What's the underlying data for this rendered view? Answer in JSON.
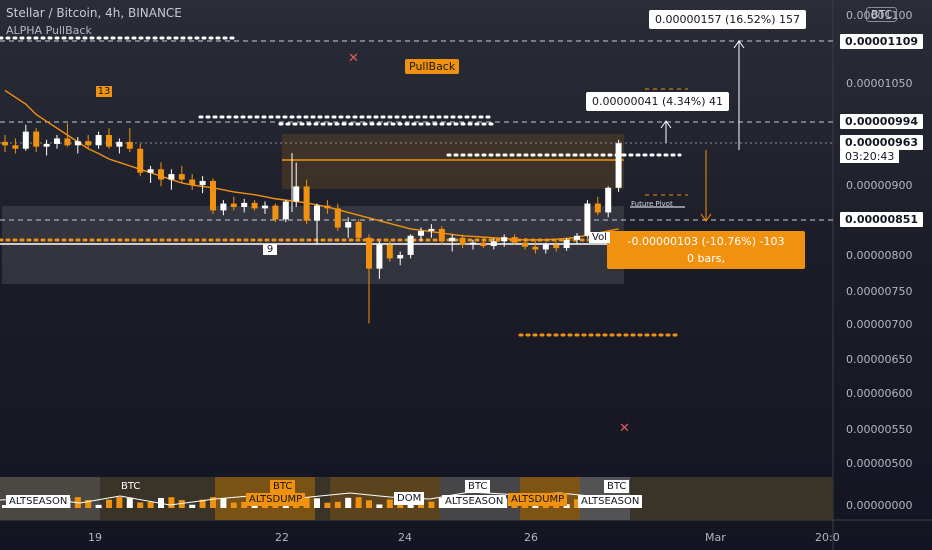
{
  "header": {
    "title": "Stellar / Bitcoin, 4h, BINANCE",
    "indicator": "ALPHA PullBack",
    "currency": "BTC"
  },
  "price_axis": {
    "ticks": [
      "0.00001100",
      "0.00001050",
      "0.00000900",
      "0.00000800",
      "0.00000750",
      "0.00000700",
      "0.00000650",
      "0.00000600",
      "0.00000550",
      "0.00000500",
      "0.00000000"
    ],
    "labels": {
      "top": "0.00001109",
      "upper": "0.00000994",
      "current": "0.00000963",
      "countdown": "03:20:43",
      "lower": "0.00000851"
    }
  },
  "date_axis": {
    "ticks": [
      "19",
      "22",
      "24",
      "26",
      "Mar",
      "20:0"
    ]
  },
  "annotations": {
    "measure_up_large": "0.00000157 (16.52%) 157",
    "measure_up_small": "0.00000041 (4.34%) 41",
    "measure_down_line1": "-0.00000103 (-10.76%) -103",
    "measure_down_line2": "0 bars,",
    "pullback": "PullBack",
    "count_top": "13",
    "count_bottom": "9",
    "future_pivot": "Future Pivot",
    "vol": "Vol"
  },
  "oscillator": {
    "labels": [
      {
        "text": "ALTSEASON",
        "style": "white"
      },
      {
        "text": "BTC",
        "style": "ghost"
      },
      {
        "text": "BTC",
        "style": "orange"
      },
      {
        "text": "ALTSDUMP",
        "style": "orange"
      },
      {
        "text": "DOM",
        "style": "white"
      },
      {
        "text": "ALTSEASON",
        "style": "white"
      },
      {
        "text": "BTC",
        "style": "white"
      },
      {
        "text": "ALTSDUMP",
        "style": "orange"
      },
      {
        "text": "BTC",
        "style": "white"
      },
      {
        "text": "ALTSEASON",
        "style": "white"
      }
    ]
  },
  "colors": {
    "bull": "#ffffff",
    "bear": "#f0920f",
    "accent": "#f0920f",
    "background": "#1c1d28"
  },
  "chart_data": {
    "type": "candlestick",
    "title": "Stellar / Bitcoin, 4h, BINANCE",
    "xlabel": "",
    "ylabel": "",
    "candles": [
      [
        9.65e-06,
        9.75e-06,
        9.5e-06,
        9.6e-06
      ],
      [
        9.6e-06,
        9.7e-06,
        9.48e-06,
        9.55e-06
      ],
      [
        9.55e-06,
        9.9e-06,
        9.52e-06,
        9.8e-06
      ],
      [
        9.8e-06,
        9.85e-06,
        9.5e-06,
        9.58e-06
      ],
      [
        9.58e-06,
        9.68e-06,
        9.45e-06,
        9.62e-06
      ],
      [
        9.62e-06,
        9.75e-06,
        9.55e-06,
        9.7e-06
      ],
      [
        9.7e-06,
        9.92e-06,
        9.58e-06,
        9.6e-06
      ],
      [
        9.6e-06,
        9.72e-06,
        9.48e-06,
        9.66e-06
      ],
      [
        9.66e-06,
        9.75e-06,
        9.55e-06,
        9.6e-06
      ],
      [
        9.6e-06,
        9.8e-06,
        9.55e-06,
        9.75e-06
      ],
      [
        9.75e-06,
        9.85e-06,
        9.55e-06,
        9.58e-06
      ],
      [
        9.58e-06,
        9.7e-06,
        9.48e-06,
        9.65e-06
      ],
      [
        9.65e-06,
        9.85e-06,
        9.5e-06,
        9.55e-06
      ],
      [
        9.55e-06,
        9.62e-06,
        9.15e-06,
        9.2e-06
      ],
      [
        9.2e-06,
        9.3e-06,
        9.05e-06,
        9.25e-06
      ],
      [
        9.25e-06,
        9.35e-06,
        9e-06,
        9.1e-06
      ],
      [
        9.1e-06,
        9.25e-06,
        8.95e-06,
        9.18e-06
      ],
      [
        9.18e-06,
        9.3e-06,
        9.05e-06,
        9.1e-06
      ],
      [
        9.1e-06,
        9.18e-06,
        8.95e-06,
        9.02e-06
      ],
      [
        9.02e-06,
        9.15e-06,
        8.9e-06,
        9.08e-06
      ],
      [
        9.08e-06,
        9.12e-06,
        8.6e-06,
        8.65e-06
      ],
      [
        8.65e-06,
        8.8e-06,
        8.58e-06,
        8.75e-06
      ],
      [
        8.75e-06,
        8.85e-06,
        8.65e-06,
        8.7e-06
      ],
      [
        8.7e-06,
        8.82e-06,
        8.62e-06,
        8.76e-06
      ],
      [
        8.76e-06,
        8.8e-06,
        8.65e-06,
        8.68e-06
      ],
      [
        8.68e-06,
        8.78e-06,
        8.6e-06,
        8.72e-06
      ],
      [
        8.72e-06,
        8.75e-06,
        8.48e-06,
        8.52e-06
      ],
      [
        8.52e-06,
        8.8e-06,
        8.48e-06,
        8.78e-06
      ],
      [
        8.78e-06,
        9.35e-06,
        8.7e-06,
        9e-06
      ],
      [
        9e-06,
        9.1e-06,
        8.45e-06,
        8.5e-06
      ],
      [
        8.5e-06,
        8.75e-06,
        8.15e-06,
        8.72e-06
      ],
      [
        8.72e-06,
        8.8e-06,
        8.6e-06,
        8.68e-06
      ],
      [
        8.68e-06,
        8.75e-06,
        8.35e-06,
        8.4e-06
      ],
      [
        8.4e-06,
        8.55e-06,
        8.25e-06,
        8.48e-06
      ],
      [
        8.48e-06,
        8.52e-06,
        8.2e-06,
        8.25e-06
      ],
      [
        8.25e-06,
        8.3e-06,
        7e-06,
        7.8e-06
      ],
      [
        7.8e-06,
        8.2e-06,
        7.65e-06,
        8.15e-06
      ],
      [
        8.15e-06,
        8.2e-06,
        7.9e-06,
        7.95e-06
      ],
      [
        7.95e-06,
        8.05e-06,
        7.85e-06,
        8e-06
      ],
      [
        8e-06,
        8.3e-06,
        7.95e-06,
        8.28e-06
      ],
      [
        8.28e-06,
        8.4e-06,
        8.2e-06,
        8.35e-06
      ],
      [
        8.35e-06,
        8.45e-06,
        8.25e-06,
        8.38e-06
      ],
      [
        8.38e-06,
        8.42e-06,
        8.15e-06,
        8.2e-06
      ],
      [
        8.2e-06,
        8.3e-06,
        8.05e-06,
        8.25e-06
      ],
      [
        8.25e-06,
        8.3e-06,
        8.1e-06,
        8.15e-06
      ],
      [
        8.15e-06,
        8.22e-06,
        8.08e-06,
        8.18e-06
      ],
      [
        8.18e-06,
        8.25e-06,
        8.1e-06,
        8.13e-06
      ],
      [
        8.13e-06,
        8.25e-06,
        8.08e-06,
        8.2e-06
      ],
      [
        8.2e-06,
        8.3e-06,
        8.12e-06,
        8.26e-06
      ],
      [
        8.26e-06,
        8.3e-06,
        8.15e-06,
        8.18e-06
      ],
      [
        8.18e-06,
        8.25e-06,
        8.08e-06,
        8.12e-06
      ],
      [
        8.12e-06,
        8.2e-06,
        8.02e-06,
        8.08e-06
      ],
      [
        8.08e-06,
        8.18e-06,
        8.02e-06,
        8.15e-06
      ],
      [
        8.15e-06,
        8.2e-06,
        8.05e-06,
        8.1e-06
      ],
      [
        8.1e-06,
        8.25e-06,
        8.06e-06,
        8.22e-06
      ],
      [
        8.22e-06,
        8.32e-06,
        8.15e-06,
        8.28e-06
      ],
      [
        8.28e-06,
        8.8e-06,
        8.25e-06,
        8.75e-06
      ],
      [
        8.75e-06,
        8.85e-06,
        8.58e-06,
        8.62e-06
      ],
      [
        8.62e-06,
        9e-06,
        8.55e-06,
        8.98e-06
      ],
      [
        8.98e-06,
        9.68e-06,
        8.92e-06,
        9.63e-06
      ]
    ],
    "moving_average": [
      1.04e-05,
      1.03e-05,
      1.02e-05,
      1.005e-05,
      9.95e-06,
      9.85e-06,
      9.75e-06,
      9.65e-06,
      9.55e-06,
      9.48e-06,
      9.4e-06,
      9.35e-06,
      9.3e-06,
      9.25e-06,
      9.2e-06,
      9.15e-06,
      9.1e-06,
      9.05e-06,
      9.02e-06,
      9e-06,
      8.98e-06,
      8.95e-06,
      8.92e-06,
      8.9e-06,
      8.88e-06,
      8.85e-06,
      8.82e-06,
      8.8e-06,
      8.78e-06,
      8.76e-06,
      8.73e-06,
      8.7e-06,
      8.66e-06,
      8.62e-06,
      8.58e-06,
      8.54e-06,
      8.5e-06,
      8.46e-06,
      8.42e-06,
      8.38e-06,
      8.36e-06,
      8.34e-06,
      8.32e-06,
      8.3e-06,
      8.28e-06,
      8.27e-06,
      8.26e-06,
      8.25e-06,
      8.24e-06,
      8.23e-06,
      8.22e-06,
      8.22e-06,
      8.22e-06,
      8.23e-06,
      8.24e-06,
      8.26e-06,
      8.29e-06,
      8.32e-06,
      8.35e-06,
      8.38e-06
    ],
    "horizontal_levels": [
      1.109e-05,
      9.94e-06,
      9.63e-06,
      8.51e-06
    ],
    "ylim": [
      4.95e-06,
      1.15e-05
    ],
    "grid": false,
    "legend": "none"
  }
}
